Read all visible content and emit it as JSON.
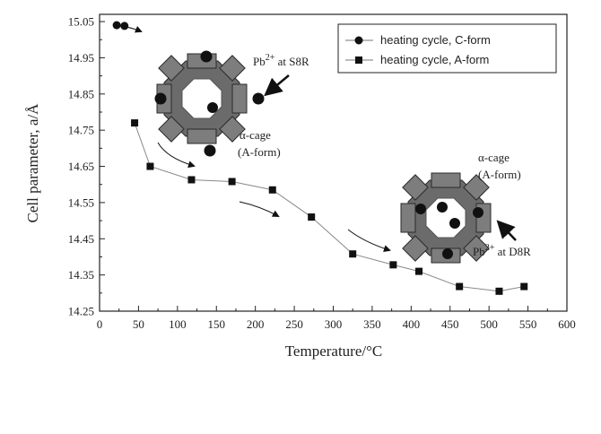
{
  "chart_data": {
    "type": "scatter",
    "xlabel": "Temperature/°C",
    "ylabel": "Cell parameter, a/Å",
    "xlim": [
      0,
      600
    ],
    "ylim": [
      14.25,
      15.07
    ],
    "xticks": [
      0,
      50,
      100,
      150,
      200,
      250,
      300,
      350,
      400,
      450,
      500,
      550,
      600
    ],
    "yticks": [
      14.25,
      14.35,
      14.45,
      14.55,
      14.65,
      14.75,
      14.85,
      14.95,
      15.05
    ],
    "xtick_labels": [
      "0",
      "50",
      "100",
      "150",
      "200",
      "250",
      "300",
      "350",
      "400",
      "450",
      "500",
      "550",
      "600"
    ],
    "ytick_labels": [
      "14.25",
      "14.35",
      "14.45",
      "14.55",
      "14.65",
      "14.75",
      "14.85",
      "14.95",
      "15.05"
    ],
    "grid": false,
    "legend_position": "top-right",
    "series": [
      {
        "name": "heating cycle, C-form",
        "marker": "circle",
        "x": [
          22,
          32
        ],
        "y": [
          15.04,
          15.038
        ]
      },
      {
        "name": "heating cycle, A-form",
        "marker": "square",
        "x": [
          45,
          65,
          118,
          170,
          222,
          272,
          325,
          377,
          410,
          462,
          513,
          545
        ],
        "y": [
          14.77,
          14.65,
          14.613,
          14.608,
          14.585,
          14.51,
          14.408,
          14.378,
          14.36,
          14.318,
          14.305,
          14.318
        ]
      }
    ],
    "annotations": [
      {
        "name": "pb-s8r",
        "sup_base": "Pb",
        "sup": "2+",
        "tail": " at S8R"
      },
      {
        "name": "pb-d8r",
        "sup_base": "Pb",
        "sup": "2+",
        "tail": " at D8R"
      },
      {
        "name": "cage-a-line1",
        "text": "α-cage"
      },
      {
        "name": "cage-a-line2",
        "text": "(A-form)"
      },
      {
        "name": "cage-b-line1",
        "text": "α-cage"
      },
      {
        "name": "cage-b-line2",
        "text": "(A-form)"
      }
    ]
  }
}
